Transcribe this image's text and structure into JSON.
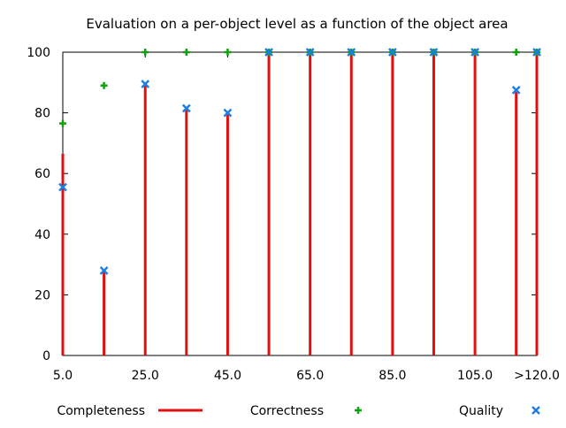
{
  "chart_data": {
    "type": "bar",
    "title": "Evaluation on a per-object level as a function of the object area",
    "xlabel": "",
    "ylabel": "",
    "ylim": [
      0,
      100
    ],
    "yticks": [
      "0",
      "20",
      "40",
      "60",
      "80",
      "100"
    ],
    "xticks": [
      "5.0",
      "25.0",
      "45.0",
      "65.0",
      "85.0",
      "105.0",
      ">120.0"
    ],
    "x": [
      5,
      15,
      25,
      35,
      45,
      55,
      65,
      75,
      85,
      95,
      105,
      115,
      120
    ],
    "xlim": [
      5,
      120
    ],
    "grid": false,
    "legend_position": "bottom",
    "series": [
      {
        "name": "Completeness",
        "style": "impulse",
        "color": "#e01010",
        "values": [
          66.5,
          28,
          89,
          81,
          79.5,
          100,
          100,
          100,
          100,
          100,
          100,
          87,
          100
        ]
      },
      {
        "name": "Correctness",
        "style": "plus",
        "color": "#10a010",
        "values": [
          76.5,
          89,
          100,
          100,
          100,
          100,
          100,
          100,
          100,
          100,
          100,
          100,
          100
        ]
      },
      {
        "name": "Quality",
        "style": "cross",
        "color": "#1c7fe0",
        "values": [
          55.5,
          28,
          89.5,
          81.5,
          80,
          100,
          100,
          100,
          100,
          100,
          100,
          87.5,
          100
        ]
      }
    ]
  }
}
